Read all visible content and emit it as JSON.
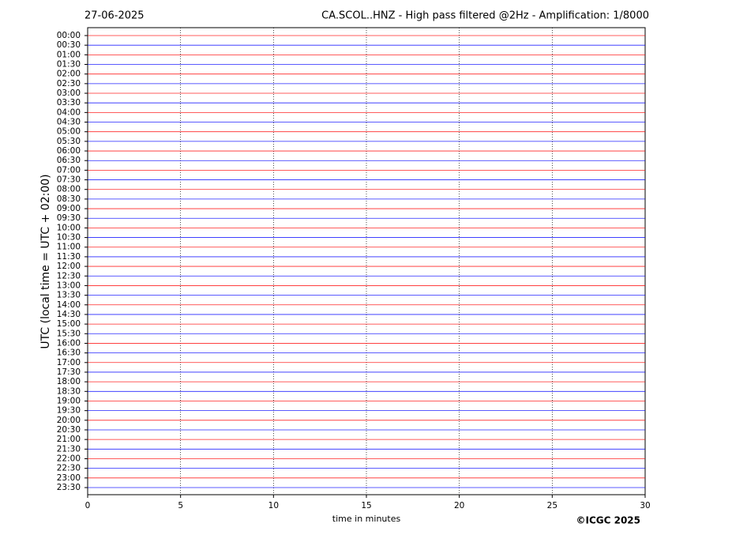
{
  "chart_data": {
    "type": "helicorder",
    "title": "CA.SCOL..HNZ - High pass filtered @2Hz - Amplification: 1/8000",
    "date": "27-06-2025",
    "credit": "©ICGC 2025",
    "xlabel": "time in minutes",
    "ylabel": "UTC (local time = UTC + 02:00)",
    "categories": [
      "00:00",
      "00:30",
      "01:00",
      "01:30",
      "02:00",
      "02:30",
      "03:00",
      "03:30",
      "04:00",
      "04:30",
      "05:00",
      "05:30",
      "06:00",
      "06:30",
      "07:00",
      "07:30",
      "08:00",
      "08:30",
      "09:00",
      "09:30",
      "10:00",
      "10:30",
      "11:00",
      "11:30",
      "12:00",
      "12:30",
      "13:00",
      "13:30",
      "14:00",
      "14:30",
      "15:00",
      "15:30",
      "16:00",
      "16:30",
      "17:00",
      "17:30",
      "18:00",
      "18:30",
      "19:00",
      "19:30",
      "20:00",
      "20:30",
      "21:00",
      "21:30",
      "22:00",
      "22:30",
      "23:00",
      "23:30"
    ],
    "line_colors": [
      "#ff0000",
      "#0000ff"
    ],
    "xlim": [
      0,
      30
    ],
    "xticks": [
      0,
      5,
      10,
      15,
      20,
      25,
      30
    ],
    "grid": true
  }
}
